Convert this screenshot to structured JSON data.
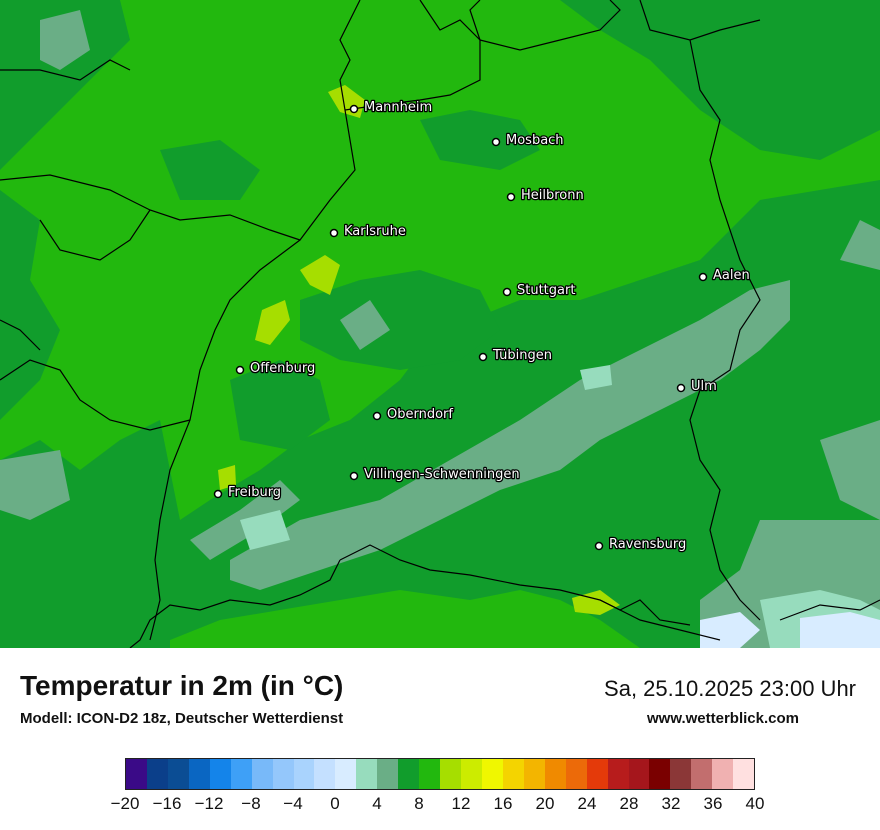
{
  "title": "Temperatur in 2m (in °C)",
  "model_line": "Modell: ICON-D2 18z, Deutscher Wetterdienst",
  "datetime": "Sa, 25.10.2025 23:00 Uhr",
  "website": "www.wetterblick.com",
  "cities": [
    {
      "name": "Mannheim"
    },
    {
      "name": "Mosbach"
    },
    {
      "name": "Heilbronn"
    },
    {
      "name": "Karlsruhe"
    },
    {
      "name": "Aalen"
    },
    {
      "name": "Stuttgart"
    },
    {
      "name": "Tübingen"
    },
    {
      "name": "Offenburg"
    },
    {
      "name": "Ulm"
    },
    {
      "name": "Oberndorf"
    },
    {
      "name": "Villingen-Schwenningen"
    },
    {
      "name": "Freiburg"
    },
    {
      "name": "Ravensburg"
    }
  ],
  "legend": {
    "colors": [
      "#3a0a87",
      "#0b3f8a",
      "#0b4d94",
      "#0a66c2",
      "#1484ea",
      "#3ea0f7",
      "#78b9f9",
      "#94c7fb",
      "#a9d3fd",
      "#c4e0ff",
      "#d8ecff",
      "#97dcbd",
      "#6aae86",
      "#119d2c",
      "#22b80e",
      "#a6de00",
      "#ccec00",
      "#f0f700",
      "#f4d400",
      "#f3b500",
      "#f08a00",
      "#ec6a09",
      "#e43a0a",
      "#b71c1c",
      "#a5161c",
      "#7a0000",
      "#8b3737",
      "#c26e6e",
      "#f0b1b1",
      "#ffe0e0"
    ],
    "tick_labels": [
      "−20",
      "−16",
      "−12",
      "−8",
      "−4",
      "0",
      "4",
      "8",
      "12",
      "16",
      "20",
      "24",
      "28",
      "32",
      "36",
      "40"
    ]
  },
  "map_colors": {
    "mid_green": "#22b80e",
    "dark_green": "#119d2c",
    "slate_green": "#6aae86",
    "mint": "#97dcbd",
    "light_blue": "#d8ecff",
    "yellow_green": "#a6de00"
  }
}
